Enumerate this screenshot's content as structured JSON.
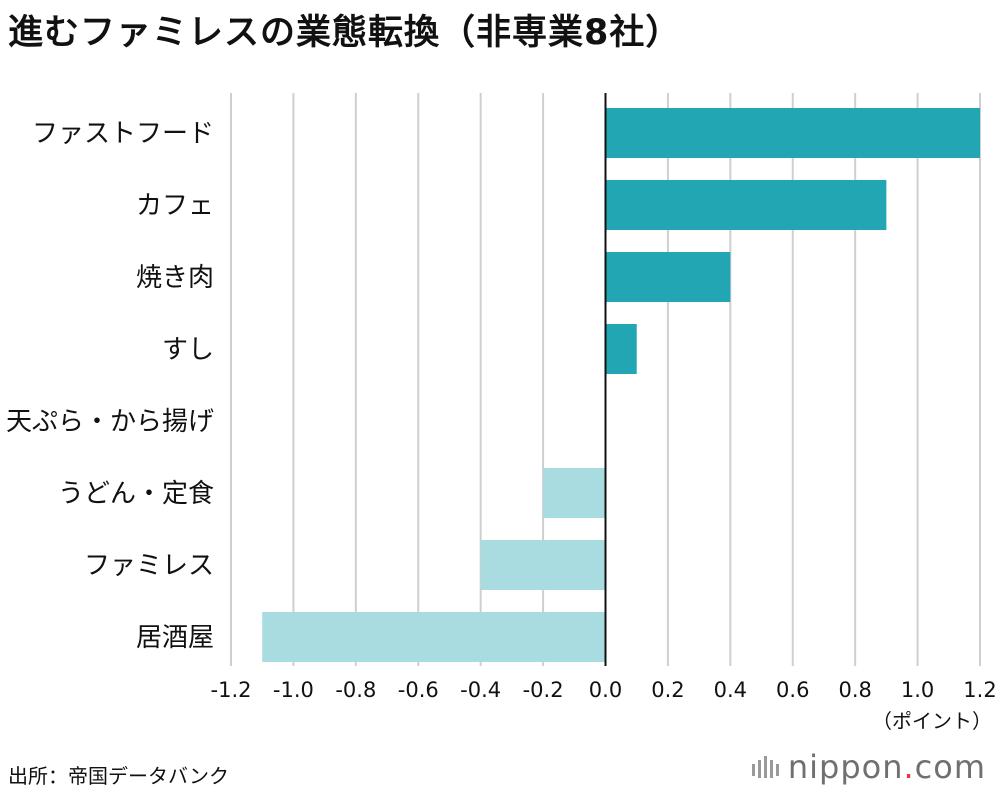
{
  "title": "進むファミレスの業態転換（非専業8社）",
  "source": "出所：帝国データバンク",
  "logo": {
    "name": "nippon",
    "dot": ".",
    "suffix": "com"
  },
  "colors": {
    "positive": "#22a6b3",
    "negative": "#a9dce1",
    "grid": "#cfcfcf",
    "axis": "#111111"
  },
  "chart_data": {
    "type": "bar",
    "orientation": "horizontal",
    "categories": [
      "ファストフード",
      "カフェ",
      "焼き肉",
      "すし",
      "天ぷら・から揚げ",
      "うどん・定食",
      "ファミレス",
      "居酒屋"
    ],
    "values": [
      1.2,
      0.9,
      0.4,
      0.1,
      0.0,
      -0.2,
      -0.4,
      -1.1
    ],
    "xlim": [
      -1.2,
      1.2
    ],
    "xticks": [
      -1.2,
      -1.0,
      -0.8,
      -0.6,
      -0.4,
      -0.2,
      0.0,
      0.2,
      0.4,
      0.6,
      0.8,
      1.0,
      1.2
    ],
    "xtick_labels": [
      "-1.2",
      "-1.0",
      "-0.8",
      "-0.6",
      "-0.4",
      "-0.2",
      "0.0",
      "0.2",
      "0.4",
      "0.6",
      "0.8",
      "1.0",
      "1.2"
    ],
    "xlabel": "（ポイント）",
    "grid": true
  }
}
